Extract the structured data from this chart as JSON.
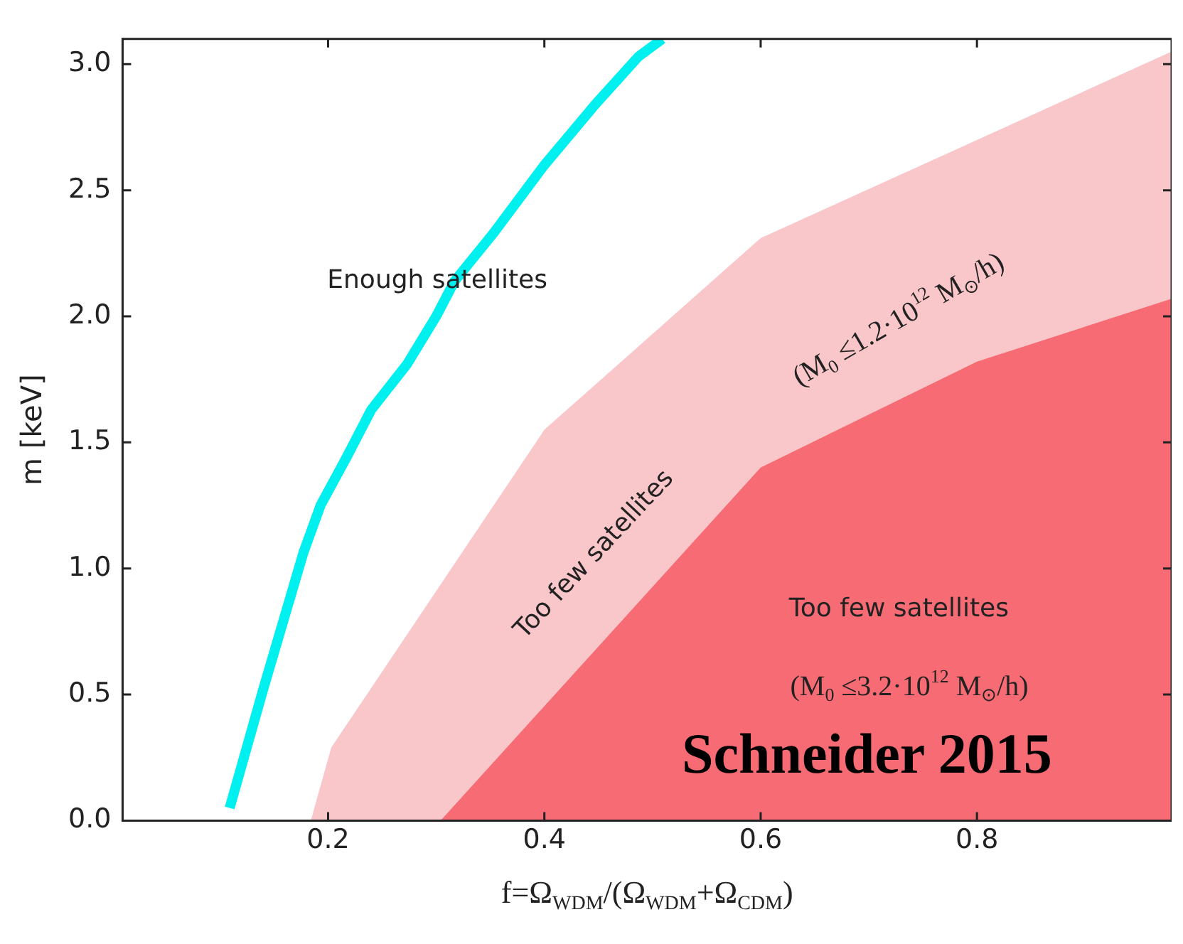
{
  "chart_data": {
    "type": "area",
    "xlabel": "f=Ω$_{WDM}$/(Ω$_{WDM}$+Ω$_{CDM}$)",
    "ylabel": "m [keV]",
    "xlim": [
      0.01,
      0.98
    ],
    "xticks": [
      0.2,
      0.4,
      0.6,
      0.8
    ],
    "ylim": [
      0,
      3.1
    ],
    "yticks": [
      {
        "value": 0,
        "label": "0.0"
      },
      0.5,
      {
        "value": 1,
        "label": "1.0"
      },
      1.5,
      {
        "value": 2,
        "label": "2.0"
      },
      2.5,
      {
        "value": 3,
        "label": "3.0"
      }
    ],
    "grid": false,
    "legend": false,
    "marker": "none",
    "line_style": "solid",
    "series": [
      {
        "type": "area",
        "color": "#f9c6c9",
        "x": [
          0.184,
          0.203,
          0.4,
          0.6,
          0.98
        ],
        "values": [
          0,
          0.29,
          1.55,
          2.31,
          3.05
        ]
      },
      {
        "type": "area",
        "color": "#f76b74",
        "x": [
          0.304,
          0.6,
          0.8,
          0.98
        ],
        "values": [
          0,
          1.4,
          1.82,
          2.07
        ]
      },
      {
        "type": "line",
        "color": "#00f0f0",
        "x": [
          0.109,
          0.14,
          0.177,
          0.193,
          0.217,
          0.24,
          0.273,
          0.3,
          0.317,
          0.353,
          0.4,
          0.447,
          0.487,
          0.509
        ],
        "values": [
          0.05,
          0.52,
          1.06,
          1.25,
          1.44,
          1.63,
          1.81,
          2.0,
          2.14,
          2.33,
          2.6,
          2.84,
          3.03,
          3.1
        ]
      }
    ],
    "annotations": [
      "Enough satellites",
      "Too few satellites",
      "(M$_{0}$ ≤1.2·10$^{12}$ M$_{⊙}$/h)",
      "Too few satellites",
      "(M$_{0}$ ≤3.2·10$^{12}$ M$_{⊙}$/h)",
      "Schneider 2015"
    ]
  }
}
